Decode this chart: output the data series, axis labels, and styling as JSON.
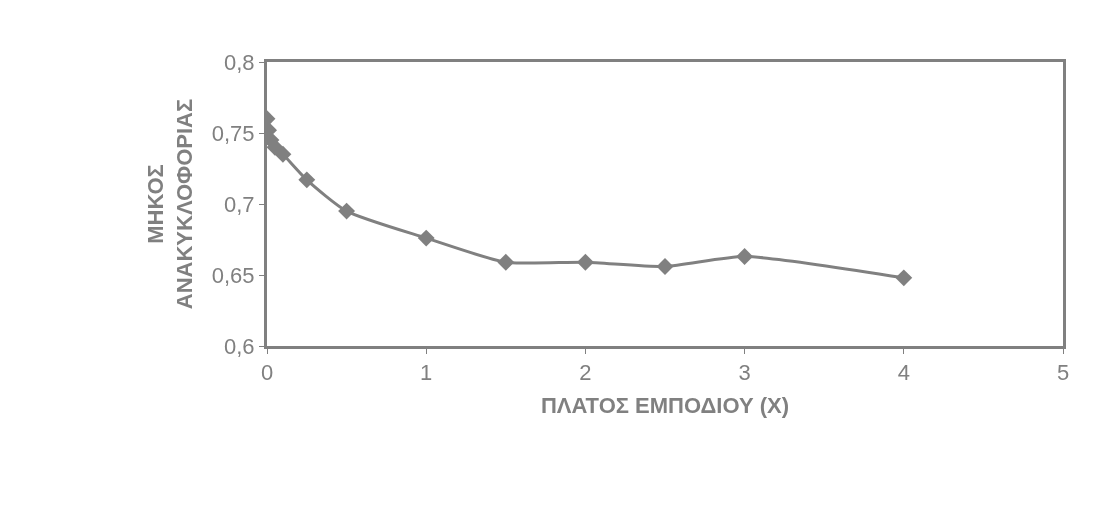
{
  "chart_data": {
    "type": "line",
    "xlabel": "ΠΛΑΤΟΣ ΕΜΠΟΔΙΟΥ (X)",
    "ylabel": "ΜΗΚΟΣ\nΑΝΑΚΥΚΛΟΦΟΡΙΑΣ",
    "x": [
      0,
      0.01,
      0.025,
      0.05,
      0.1,
      0.25,
      0.5,
      1,
      1.5,
      2,
      2.5,
      3,
      4
    ],
    "series": [
      {
        "color": "#808080",
        "values": [
          0.76,
          0.752,
          0.745,
          0.74,
          0.735,
          0.717,
          0.695,
          0.676,
          0.659,
          0.659,
          0.656,
          0.663,
          0.648
        ]
      }
    ],
    "xlim": [
      0,
      5
    ],
    "xticks": [
      0,
      1,
      2,
      3,
      4,
      5
    ],
    "ylim": [
      0.6,
      0.8
    ],
    "yticks": [
      {
        "value": 0.6,
        "label": "0,6"
      },
      {
        "value": 0.65,
        "label": "0,65"
      },
      {
        "value": 0.7,
        "label": "0,7"
      },
      {
        "value": 0.75,
        "label": "0,75"
      },
      {
        "value": 0.8,
        "label": "0,8"
      }
    ],
    "marker": "diamond",
    "line_style": "solid"
  }
}
